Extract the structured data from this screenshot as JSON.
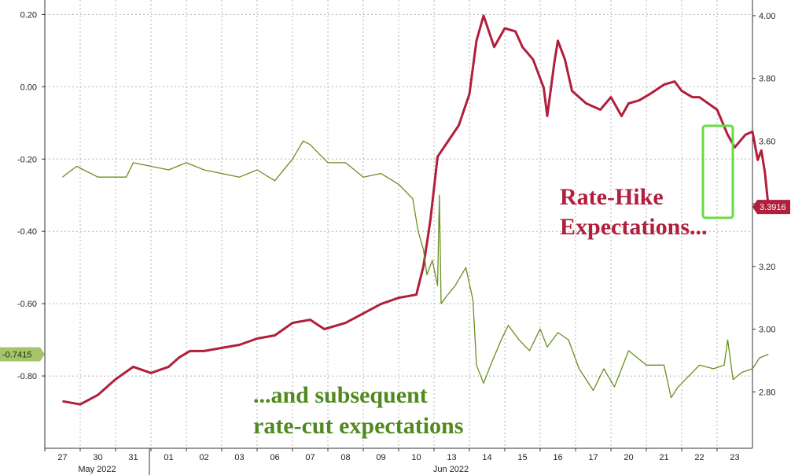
{
  "chart_data": {
    "type": "line",
    "title": "",
    "x_ticks": [
      "27",
      "30",
      "31",
      "01",
      "02",
      "03",
      "06",
      "07",
      "08",
      "09",
      "10",
      "13",
      "14",
      "15",
      "16",
      "17",
      "20",
      "21",
      "22",
      "23"
    ],
    "x_months": [
      "May 2022",
      "Jun 2022"
    ],
    "left_axis": {
      "ticks": [
        "0.20",
        "0.00",
        "-0.20",
        "-0.40",
        "-0.60",
        "-0.80"
      ],
      "ylim": [
        -1.0,
        0.24
      ]
    },
    "right_axis": {
      "ticks": [
        "4.00",
        "3.80",
        "3.60",
        "3.40",
        "3.20",
        "3.00",
        "2.80"
      ],
      "ylim": [
        2.62,
        4.05
      ]
    },
    "series": [
      {
        "axis": "right",
        "color": "#b01f3c",
        "last_value_label": "3.3916",
        "points": [
          [
            0,
            2.77
          ],
          [
            0.5,
            2.76
          ],
          [
            1,
            2.79
          ],
          [
            1.5,
            2.84
          ],
          [
            2,
            2.88
          ],
          [
            2.5,
            2.86
          ],
          [
            3,
            2.88
          ],
          [
            3.3,
            2.91
          ],
          [
            3.6,
            2.93
          ],
          [
            4,
            2.93
          ],
          [
            4.5,
            2.94
          ],
          [
            5,
            2.95
          ],
          [
            5.5,
            2.97
          ],
          [
            6,
            2.98
          ],
          [
            6.5,
            3.02
          ],
          [
            7,
            3.03
          ],
          [
            7.4,
            3.0
          ],
          [
            8,
            3.02
          ],
          [
            8.5,
            3.05
          ],
          [
            9,
            3.08
          ],
          [
            9.5,
            3.1
          ],
          [
            10,
            3.11
          ],
          [
            10.2,
            3.2
          ],
          [
            10.4,
            3.35
          ],
          [
            10.6,
            3.55
          ],
          [
            10.9,
            3.6
          ],
          [
            11.2,
            3.65
          ],
          [
            11.5,
            3.75
          ],
          [
            11.7,
            3.92
          ],
          [
            11.9,
            4.0
          ],
          [
            12.2,
            3.9
          ],
          [
            12.5,
            3.96
          ],
          [
            12.8,
            3.95
          ],
          [
            13.0,
            3.9
          ],
          [
            13.3,
            3.86
          ],
          [
            13.6,
            3.77
          ],
          [
            13.7,
            3.68
          ],
          [
            13.9,
            3.85
          ],
          [
            14.0,
            3.92
          ],
          [
            14.2,
            3.86
          ],
          [
            14.4,
            3.76
          ],
          [
            14.8,
            3.72
          ],
          [
            15.2,
            3.7
          ],
          [
            15.5,
            3.74
          ],
          [
            15.8,
            3.68
          ],
          [
            16,
            3.72
          ],
          [
            16.3,
            3.73
          ],
          [
            16.6,
            3.75
          ],
          [
            17,
            3.78
          ],
          [
            17.3,
            3.79
          ],
          [
            17.5,
            3.76
          ],
          [
            17.8,
            3.74
          ],
          [
            18,
            3.74
          ],
          [
            18.5,
            3.7
          ],
          [
            18.8,
            3.62
          ],
          [
            19,
            3.58
          ],
          [
            19.3,
            3.62
          ],
          [
            19.5,
            3.63
          ],
          [
            19.65,
            3.54
          ],
          [
            19.75,
            3.57
          ],
          [
            19.85,
            3.5
          ],
          [
            19.95,
            3.39
          ]
        ]
      },
      {
        "axis": "left",
        "color": "#6a8f1f",
        "last_value_label": "-0.7415",
        "points": [
          [
            0,
            -0.25
          ],
          [
            0.4,
            -0.22
          ],
          [
            1,
            -0.25
          ],
          [
            1.8,
            -0.25
          ],
          [
            2,
            -0.21
          ],
          [
            2.5,
            -0.22
          ],
          [
            3,
            -0.23
          ],
          [
            3.5,
            -0.21
          ],
          [
            4,
            -0.23
          ],
          [
            4.5,
            -0.24
          ],
          [
            5,
            -0.25
          ],
          [
            5.5,
            -0.23
          ],
          [
            6,
            -0.26
          ],
          [
            6.5,
            -0.2
          ],
          [
            6.8,
            -0.15
          ],
          [
            7,
            -0.16
          ],
          [
            7.5,
            -0.21
          ],
          [
            8,
            -0.21
          ],
          [
            8.5,
            -0.25
          ],
          [
            9,
            -0.24
          ],
          [
            9.5,
            -0.27
          ],
          [
            9.9,
            -0.31
          ],
          [
            10.05,
            -0.4
          ],
          [
            10.2,
            -0.45
          ],
          [
            10.3,
            -0.52
          ],
          [
            10.45,
            -0.48
          ],
          [
            10.6,
            -0.55
          ],
          [
            10.65,
            -0.3
          ],
          [
            10.7,
            -0.6
          ],
          [
            10.85,
            -0.58
          ],
          [
            11.1,
            -0.55
          ],
          [
            11.4,
            -0.5
          ],
          [
            11.6,
            -0.59
          ],
          [
            11.7,
            -0.77
          ],
          [
            11.9,
            -0.82
          ],
          [
            12.1,
            -0.77
          ],
          [
            12.4,
            -0.7
          ],
          [
            12.6,
            -0.66
          ],
          [
            12.9,
            -0.7
          ],
          [
            13.2,
            -0.73
          ],
          [
            13.5,
            -0.67
          ],
          [
            13.7,
            -0.72
          ],
          [
            14.0,
            -0.68
          ],
          [
            14.3,
            -0.7
          ],
          [
            14.6,
            -0.78
          ],
          [
            15,
            -0.84
          ],
          [
            15.3,
            -0.78
          ],
          [
            15.6,
            -0.83
          ],
          [
            16,
            -0.73
          ],
          [
            16.5,
            -0.77
          ],
          [
            17,
            -0.77
          ],
          [
            17.2,
            -0.86
          ],
          [
            17.4,
            -0.83
          ],
          [
            17.6,
            -0.81
          ],
          [
            18,
            -0.77
          ],
          [
            18.4,
            -0.78
          ],
          [
            18.7,
            -0.77
          ],
          [
            18.8,
            -0.7
          ],
          [
            18.95,
            -0.81
          ],
          [
            19.2,
            -0.79
          ],
          [
            19.5,
            -0.78
          ],
          [
            19.7,
            -0.75
          ],
          [
            19.95,
            -0.74
          ]
        ]
      }
    ],
    "grid": true,
    "annotations": {
      "red_line1": "Rate-Hike",
      "red_line2": "Expectations...",
      "green_line1": "...and subsequent",
      "green_line2": "rate-cut expectations"
    },
    "highlight_box_color": "#66dd44"
  }
}
